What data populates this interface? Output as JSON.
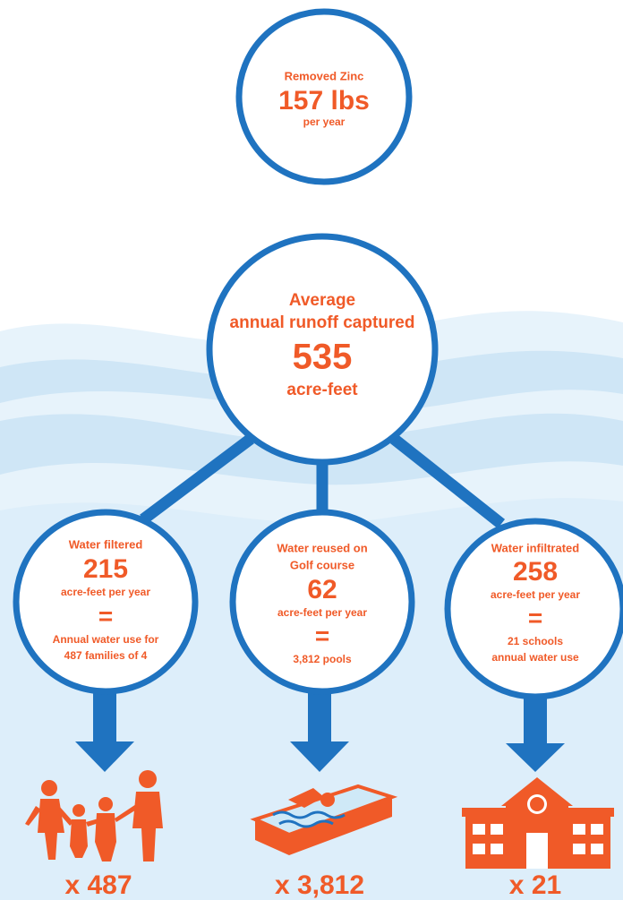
{
  "top": {
    "label": "Removed Zinc",
    "value": "157 lbs",
    "unit": "per year"
  },
  "center": {
    "lines": [
      "Average",
      "annual runoff captured"
    ],
    "value": "535",
    "unit": "acre-feet"
  },
  "branches": [
    {
      "label": [
        "Water filtered"
      ],
      "value": "215",
      "unit": "acre-feet per year",
      "equals": "=",
      "equivalent": [
        "Annual water use for",
        "487 families of 4"
      ],
      "multiplier": "x 487"
    },
    {
      "label": [
        "Water reused on",
        "Golf course"
      ],
      "value": "62",
      "unit": "acre-feet per year",
      "equals": "=",
      "equivalent": [
        "3,812 pools"
      ],
      "multiplier": "x 3,812"
    },
    {
      "label": [
        "Water infiltrated"
      ],
      "value": "258",
      "unit": "acre-feet per year",
      "equals": "=",
      "equivalent": [
        "21 schools",
        "annual water use"
      ],
      "multiplier": "x 21"
    }
  ]
}
